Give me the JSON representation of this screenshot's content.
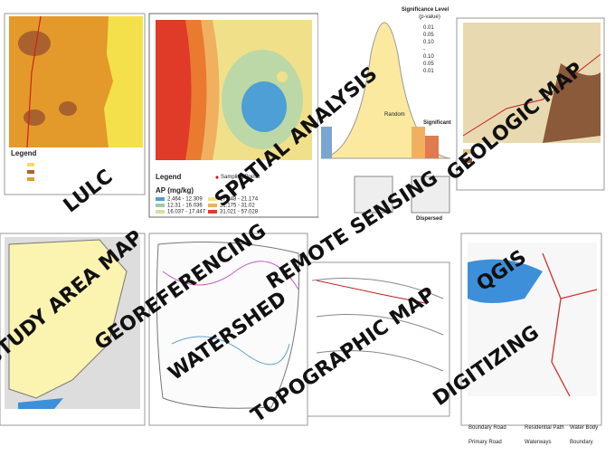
{
  "labels": [
    "LULC",
    "SPATIAL ANALYSIS",
    "REMOTE SENSING",
    "GEOLOGIC MAP",
    "STUDY AREA MAP",
    "GEOREFERENCING",
    "WATERSHED",
    "TOPOGRAPHIC MAP",
    "QGIS",
    "DIGITIZING"
  ],
  "panels": {
    "lulc": {
      "legend_title": "Legend"
    },
    "spatial": {
      "legend_title": "Legend",
      "sampling": "Sampling Points",
      "unit": "AP (mg/kg)",
      "classes": [
        "2.464 - 12.309",
        "12.31 - 16.036",
        "16.037 - 17.447",
        "17.448 - 21.174",
        "21.175 - 31.02",
        "31.021 - 57.028"
      ]
    },
    "significance": {
      "title": "Significance Level",
      "subtitle": "(p-value)",
      "values": [
        "0.01",
        "0.05",
        "0.10",
        "-",
        "0.10",
        "0.05",
        "0.01"
      ],
      "random": "Random",
      "significant": "Significant"
    },
    "remote": {
      "dispersed": "Dispersed"
    },
    "qgis": {
      "legend": [
        "Boundary Road",
        "Residential Path",
        "Water Body",
        "Primary Road",
        "Waterways",
        "Boundary"
      ]
    }
  }
}
